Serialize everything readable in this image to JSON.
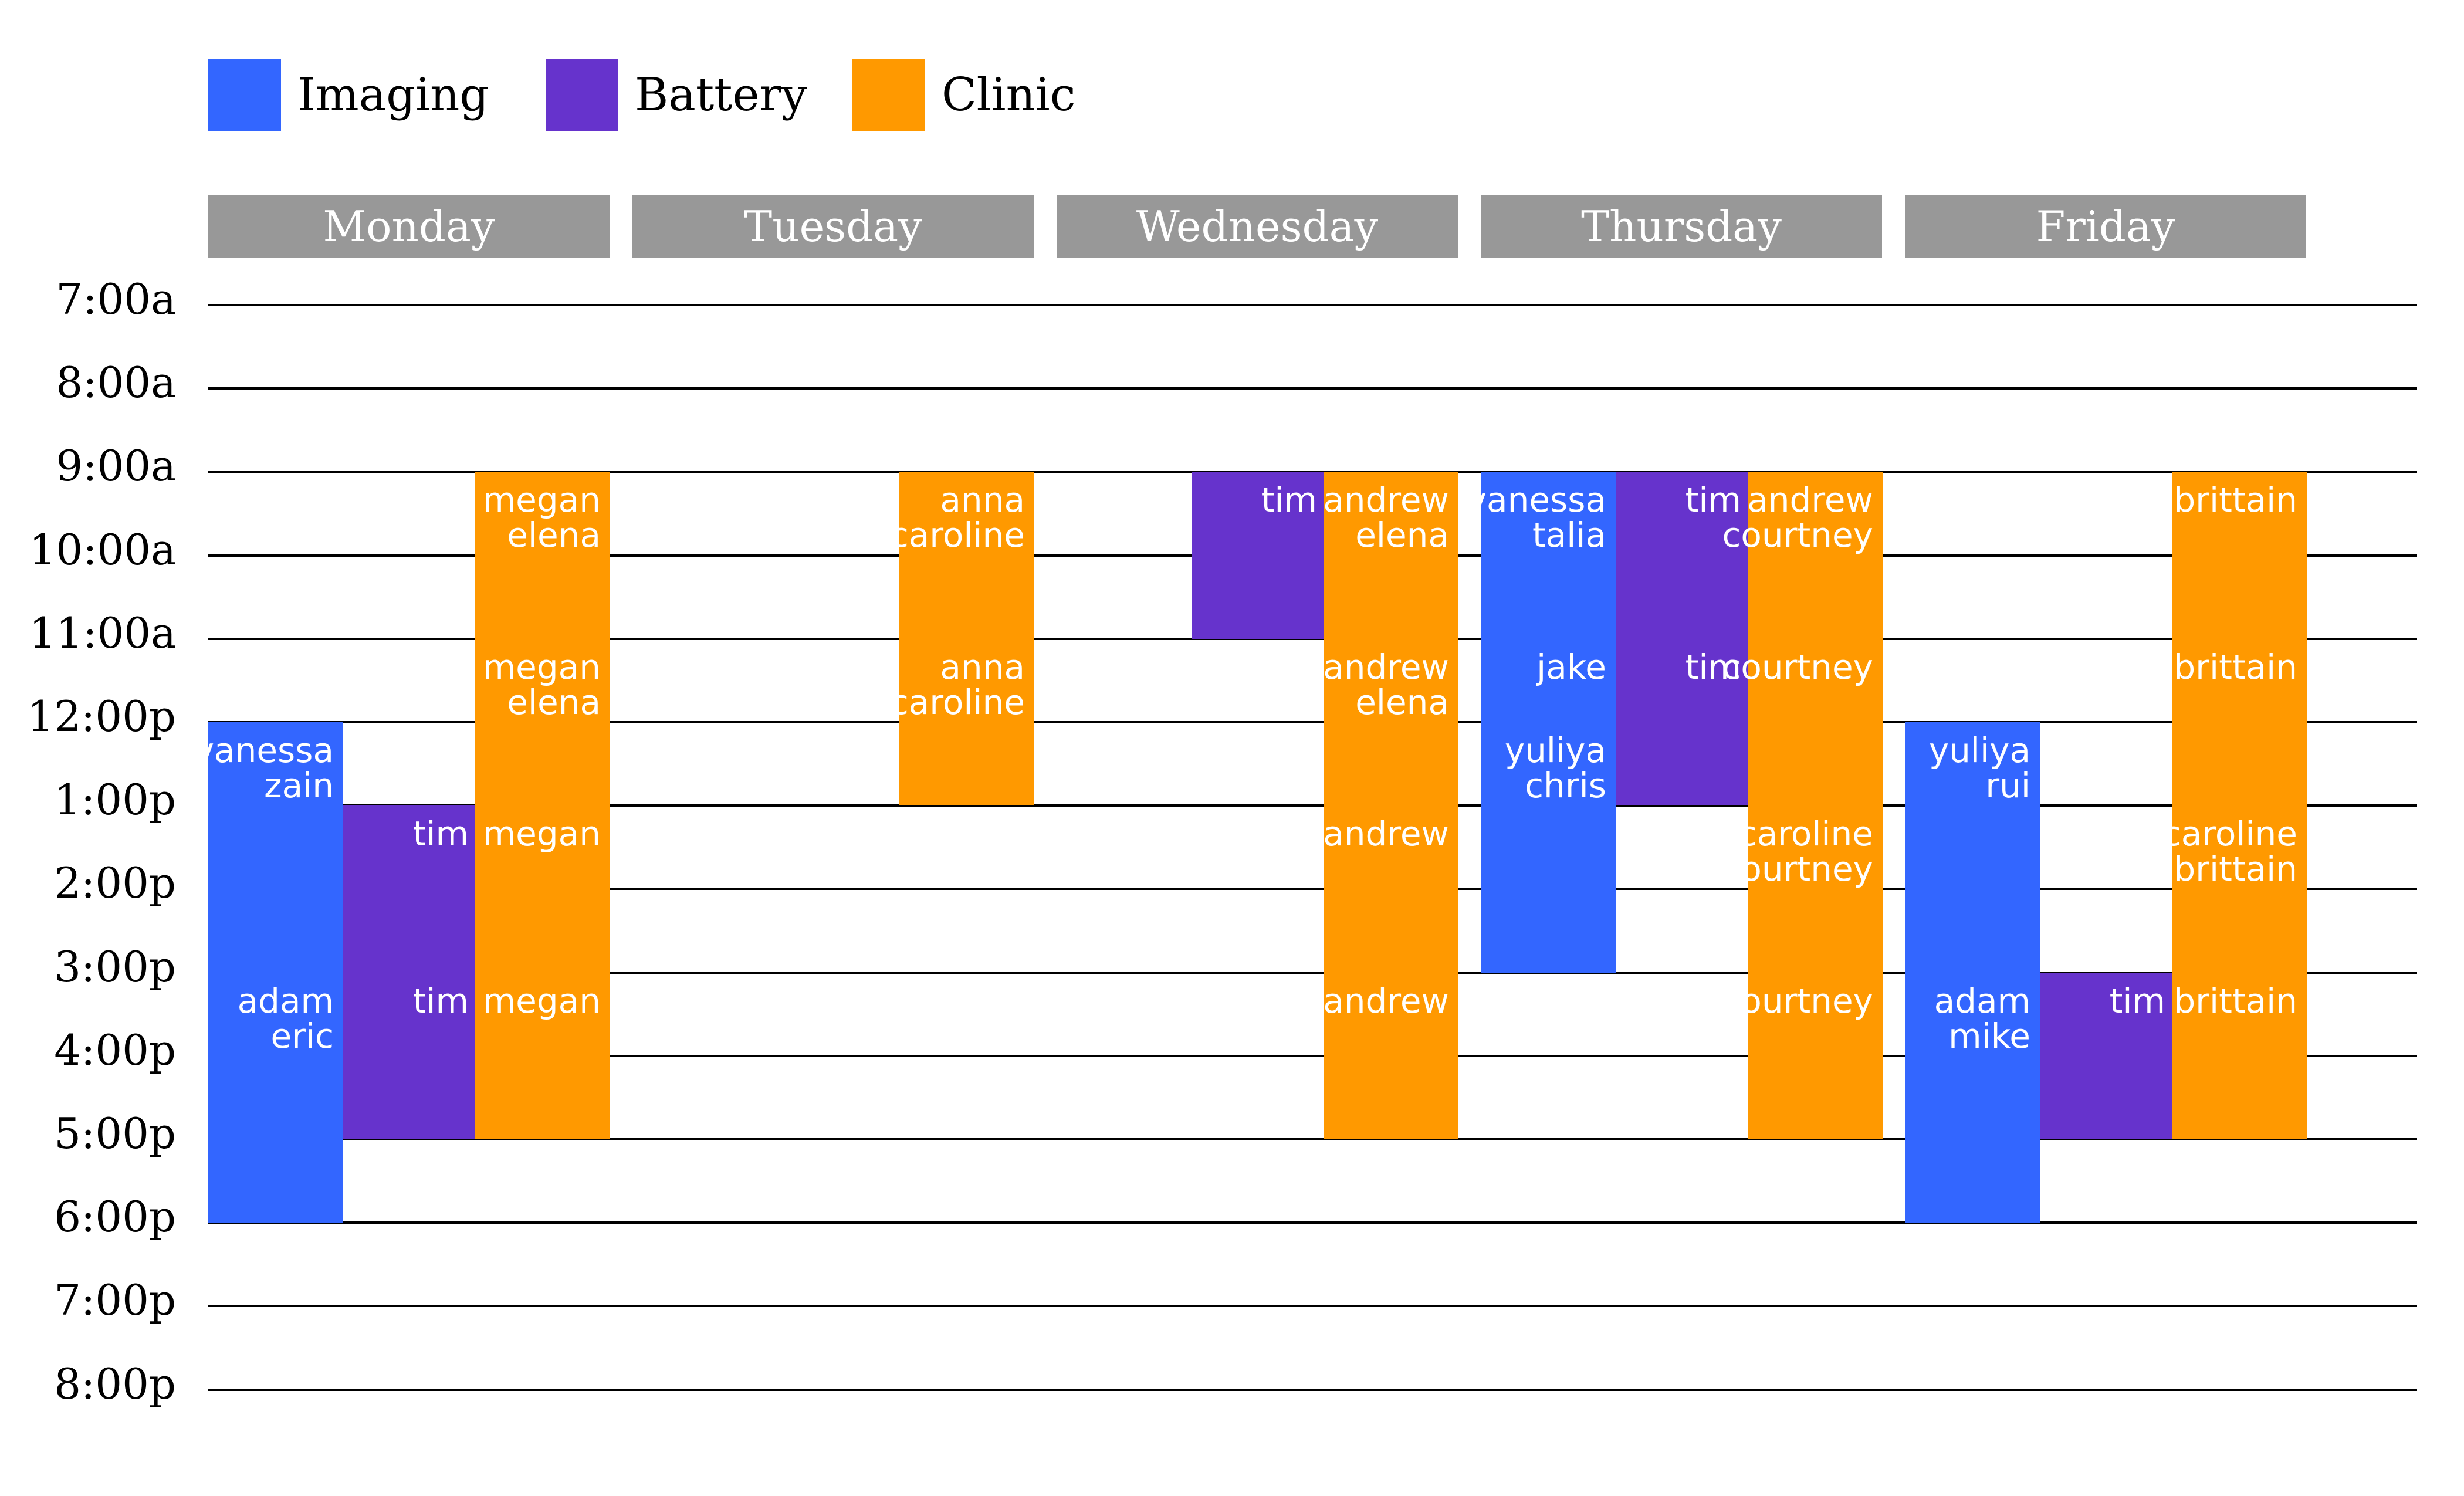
{
  "colors": {
    "imaging": "#3366ff",
    "battery": "#6633cc",
    "clinic": "#ff9900",
    "header": "#989898"
  },
  "legend": [
    {
      "label": "Imaging",
      "category": "imaging"
    },
    {
      "label": "Battery",
      "category": "battery"
    },
    {
      "label": "Clinic",
      "category": "clinic"
    }
  ],
  "days": [
    "Monday",
    "Tuesday",
    "Wednesday",
    "Thursday",
    "Friday"
  ],
  "times": [
    "7:00a",
    "8:00a",
    "9:00a",
    "10:00a",
    "11:00a",
    "12:00p",
    "1:00p",
    "2:00p",
    "3:00p",
    "4:00p",
    "5:00p",
    "6:00p",
    "7:00p",
    "8:00p"
  ],
  "schedule": [
    {
      "day": "Monday",
      "lane": 0,
      "category": "imaging",
      "start": 12,
      "end": 15,
      "people": [
        "vanessa",
        "zain"
      ]
    },
    {
      "day": "Monday",
      "lane": 0,
      "category": "imaging",
      "start": 15,
      "end": 18,
      "people": [
        "adam",
        "eric"
      ]
    },
    {
      "day": "Monday",
      "lane": 1,
      "category": "battery",
      "start": 13,
      "end": 15,
      "people": [
        "tim"
      ]
    },
    {
      "day": "Monday",
      "lane": 1,
      "category": "battery",
      "start": 15,
      "end": 17,
      "people": [
        "tim"
      ]
    },
    {
      "day": "Monday",
      "lane": 2,
      "category": "clinic",
      "start": 9,
      "end": 11,
      "people": [
        "megan",
        "elena"
      ]
    },
    {
      "day": "Monday",
      "lane": 2,
      "category": "clinic",
      "start": 11,
      "end": 13,
      "people": [
        "megan",
        "elena"
      ]
    },
    {
      "day": "Monday",
      "lane": 2,
      "category": "clinic",
      "start": 13,
      "end": 15,
      "people": [
        "megan"
      ]
    },
    {
      "day": "Monday",
      "lane": 2,
      "category": "clinic",
      "start": 15,
      "end": 17,
      "people": [
        "megan"
      ]
    },
    {
      "day": "Tuesday",
      "lane": 2,
      "category": "clinic",
      "start": 9,
      "end": 11,
      "people": [
        "anna",
        "caroline"
      ]
    },
    {
      "day": "Tuesday",
      "lane": 2,
      "category": "clinic",
      "start": 11,
      "end": 13,
      "people": [
        "anna",
        "caroline"
      ]
    },
    {
      "day": "Wednesday",
      "lane": 1,
      "category": "battery",
      "start": 9,
      "end": 11,
      "people": [
        "tim"
      ]
    },
    {
      "day": "Wednesday",
      "lane": 2,
      "category": "clinic",
      "start": 9,
      "end": 11,
      "people": [
        "andrew",
        "elena"
      ]
    },
    {
      "day": "Wednesday",
      "lane": 2,
      "category": "clinic",
      "start": 11,
      "end": 13,
      "people": [
        "andrew",
        "elena"
      ]
    },
    {
      "day": "Wednesday",
      "lane": 2,
      "category": "clinic",
      "start": 13,
      "end": 15,
      "people": [
        "andrew"
      ]
    },
    {
      "day": "Wednesday",
      "lane": 2,
      "category": "clinic",
      "start": 15,
      "end": 17,
      "people": [
        "andrew"
      ]
    },
    {
      "day": "Thursday",
      "lane": 0,
      "category": "imaging",
      "start": 9,
      "end": 11,
      "people": [
        "vanessa",
        "talia"
      ]
    },
    {
      "day": "Thursday",
      "lane": 0,
      "category": "imaging",
      "start": 11,
      "end": 12,
      "people": [
        "jake"
      ]
    },
    {
      "day": "Thursday",
      "lane": 0,
      "category": "imaging",
      "start": 12,
      "end": 15,
      "people": [
        "yuliya",
        "chris"
      ]
    },
    {
      "day": "Thursday",
      "lane": 1,
      "category": "battery",
      "start": 9,
      "end": 11,
      "people": [
        "tim"
      ]
    },
    {
      "day": "Thursday",
      "lane": 1,
      "category": "battery",
      "start": 11,
      "end": 13,
      "people": [
        "tim"
      ]
    },
    {
      "day": "Thursday",
      "lane": 2,
      "category": "clinic",
      "start": 9,
      "end": 11,
      "people": [
        "andrew",
        "courtney"
      ]
    },
    {
      "day": "Thursday",
      "lane": 2,
      "category": "clinic",
      "start": 11,
      "end": 13,
      "people": [
        "courtney"
      ]
    },
    {
      "day": "Thursday",
      "lane": 2,
      "category": "clinic",
      "start": 13,
      "end": 15,
      "people": [
        "caroline",
        "courtney"
      ]
    },
    {
      "day": "Thursday",
      "lane": 2,
      "category": "clinic",
      "start": 15,
      "end": 17,
      "people": [
        "courtney"
      ]
    },
    {
      "day": "Friday",
      "lane": 0,
      "category": "imaging",
      "start": 12,
      "end": 15,
      "people": [
        "yuliya",
        "rui"
      ]
    },
    {
      "day": "Friday",
      "lane": 0,
      "category": "imaging",
      "start": 15,
      "end": 18,
      "people": [
        "adam",
        "mike"
      ]
    },
    {
      "day": "Friday",
      "lane": 1,
      "category": "battery",
      "start": 15,
      "end": 17,
      "people": [
        "tim"
      ]
    },
    {
      "day": "Friday",
      "lane": 2,
      "category": "clinic",
      "start": 9,
      "end": 11,
      "people": [
        "brittain"
      ]
    },
    {
      "day": "Friday",
      "lane": 2,
      "category": "clinic",
      "start": 11,
      "end": 13,
      "people": [
        "brittain"
      ]
    },
    {
      "day": "Friday",
      "lane": 2,
      "category": "clinic",
      "start": 13,
      "end": 15,
      "people": [
        "caroline",
        "brittain"
      ]
    },
    {
      "day": "Friday",
      "lane": 2,
      "category": "clinic",
      "start": 15,
      "end": 17,
      "people": [
        "brittain"
      ]
    }
  ]
}
